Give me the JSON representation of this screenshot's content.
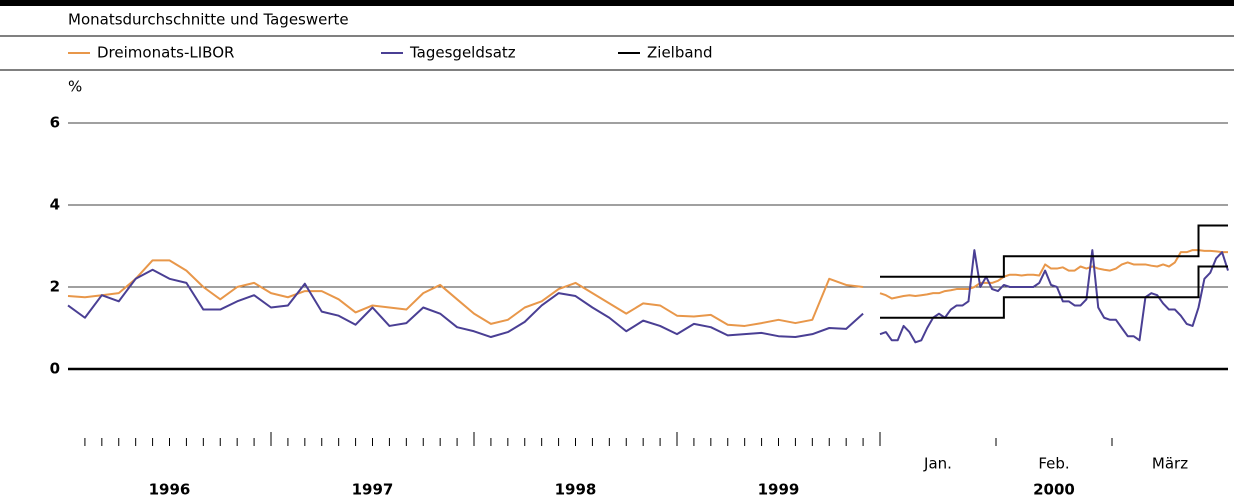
{
  "chart_data": [
    {
      "type": "line",
      "title": "Monatsdurchschnitte und Tageswerte",
      "y_label": "%",
      "ylim": [
        -1.5,
        6.5
      ],
      "yticks": [
        0,
        2,
        4,
        6
      ],
      "grid": true,
      "year_labels": [
        "1996",
        "1997",
        "1998",
        "1999"
      ],
      "series": [
        {
          "name": "Dreimonats-LIBOR",
          "color": "#e8974a",
          "values": [
            1.78,
            1.75,
            1.8,
            1.85,
            2.2,
            2.65,
            2.65,
            2.4,
            2.0,
            1.7,
            2.0,
            2.1,
            1.85,
            1.75,
            1.9,
            1.9,
            1.7,
            1.38,
            1.55,
            1.5,
            1.45,
            1.85,
            2.05,
            1.7,
            1.35,
            1.1,
            1.2,
            1.5,
            1.65,
            1.95,
            2.1,
            1.85,
            1.6,
            1.35,
            1.6,
            1.55,
            1.3,
            1.28,
            1.32,
            1.08,
            1.05,
            1.12,
            1.2,
            1.12,
            1.2,
            2.2,
            2.05,
            2.0
          ]
        },
        {
          "name": "Tagesgeldsatz",
          "color": "#4a3f94",
          "values": [
            1.55,
            1.25,
            1.8,
            1.65,
            2.2,
            2.42,
            2.2,
            2.1,
            1.45,
            1.45,
            1.65,
            1.8,
            1.5,
            1.55,
            2.08,
            1.4,
            1.3,
            1.08,
            1.5,
            1.05,
            1.12,
            1.5,
            1.35,
            1.02,
            0.92,
            0.78,
            0.9,
            1.15,
            1.55,
            1.85,
            1.78,
            1.5,
            1.25,
            0.92,
            1.18,
            1.05,
            0.85,
            1.1,
            1.02,
            0.82,
            0.85,
            0.88,
            0.8,
            0.78,
            0.85,
            1.0,
            0.98,
            1.35
          ]
        }
      ]
    },
    {
      "type": "line",
      "ylim": [
        -1.5,
        6.5
      ],
      "month_labels": [
        "Jan.",
        "Feb.",
        "März"
      ],
      "year_label": "2000",
      "series": [
        {
          "color": "#e8974a",
          "values": [
            1.85,
            1.8,
            1.72,
            1.75,
            1.78,
            1.8,
            1.78,
            1.8,
            1.82,
            1.85,
            1.85,
            1.9,
            1.92,
            1.95,
            1.95,
            1.95,
            2.0,
            2.1,
            2.1,
            2.1,
            2.15,
            2.25,
            2.3,
            2.3,
            2.28,
            2.3,
            2.3,
            2.28,
            2.55,
            2.45,
            2.45,
            2.48,
            2.4,
            2.4,
            2.5,
            2.45,
            2.5,
            2.45,
            2.42,
            2.4,
            2.45,
            2.55,
            2.6,
            2.55,
            2.55,
            2.55,
            2.52,
            2.5,
            2.55,
            2.5,
            2.6,
            2.85,
            2.85,
            2.9,
            2.9,
            2.88,
            2.88,
            2.87,
            2.85,
            2.85
          ]
        },
        {
          "color": "#4a3f94",
          "values": [
            0.85,
            0.9,
            0.7,
            0.7,
            1.05,
            0.9,
            0.65,
            0.7,
            1.0,
            1.25,
            1.35,
            1.25,
            1.45,
            1.55,
            1.55,
            1.65,
            2.9,
            2.0,
            2.25,
            1.95,
            1.9,
            2.05,
            2.0,
            2.0,
            2.0,
            2.0,
            2.0,
            2.1,
            2.4,
            2.05,
            2.0,
            1.65,
            1.65,
            1.55,
            1.55,
            1.7,
            2.9,
            1.5,
            1.25,
            1.2,
            1.2,
            1.0,
            0.8,
            0.8,
            0.7,
            1.75,
            1.85,
            1.8,
            1.6,
            1.45,
            1.45,
            1.3,
            1.1,
            1.05,
            1.5,
            2.2,
            2.35,
            2.7,
            2.85,
            2.4
          ]
        },
        {
          "name": "Zielband",
          "color": "#000000",
          "values": [
            2.25,
            2.25,
            2.25,
            2.25,
            2.25,
            2.25,
            2.25,
            2.25,
            2.25,
            2.25,
            2.25,
            2.25,
            2.25,
            2.25,
            2.25,
            2.25,
            2.25,
            2.25,
            2.25,
            2.25,
            2.25,
            2.75,
            2.75,
            2.75,
            2.75,
            2.75,
            2.75,
            2.75,
            2.75,
            2.75,
            2.75,
            2.75,
            2.75,
            2.75,
            2.75,
            2.75,
            2.75,
            2.75,
            2.75,
            2.75,
            2.75,
            2.75,
            2.75,
            2.75,
            2.75,
            2.75,
            2.75,
            2.75,
            2.75,
            2.75,
            2.75,
            2.75,
            2.75,
            2.75,
            3.5,
            3.5,
            3.5,
            3.5,
            3.5,
            3.5
          ],
          "lower": [
            1.25,
            1.25,
            1.25,
            1.25,
            1.25,
            1.25,
            1.25,
            1.25,
            1.25,
            1.25,
            1.25,
            1.25,
            1.25,
            1.25,
            1.25,
            1.25,
            1.25,
            1.25,
            1.25,
            1.25,
            1.25,
            1.75,
            1.75,
            1.75,
            1.75,
            1.75,
            1.75,
            1.75,
            1.75,
            1.75,
            1.75,
            1.75,
            1.75,
            1.75,
            1.75,
            1.75,
            1.75,
            1.75,
            1.75,
            1.75,
            1.75,
            1.75,
            1.75,
            1.75,
            1.75,
            1.75,
            1.75,
            1.75,
            1.75,
            1.75,
            1.75,
            1.75,
            1.75,
            1.75,
            2.5,
            2.5,
            2.5,
            2.5,
            2.5,
            2.5
          ]
        }
      ]
    }
  ]
}
